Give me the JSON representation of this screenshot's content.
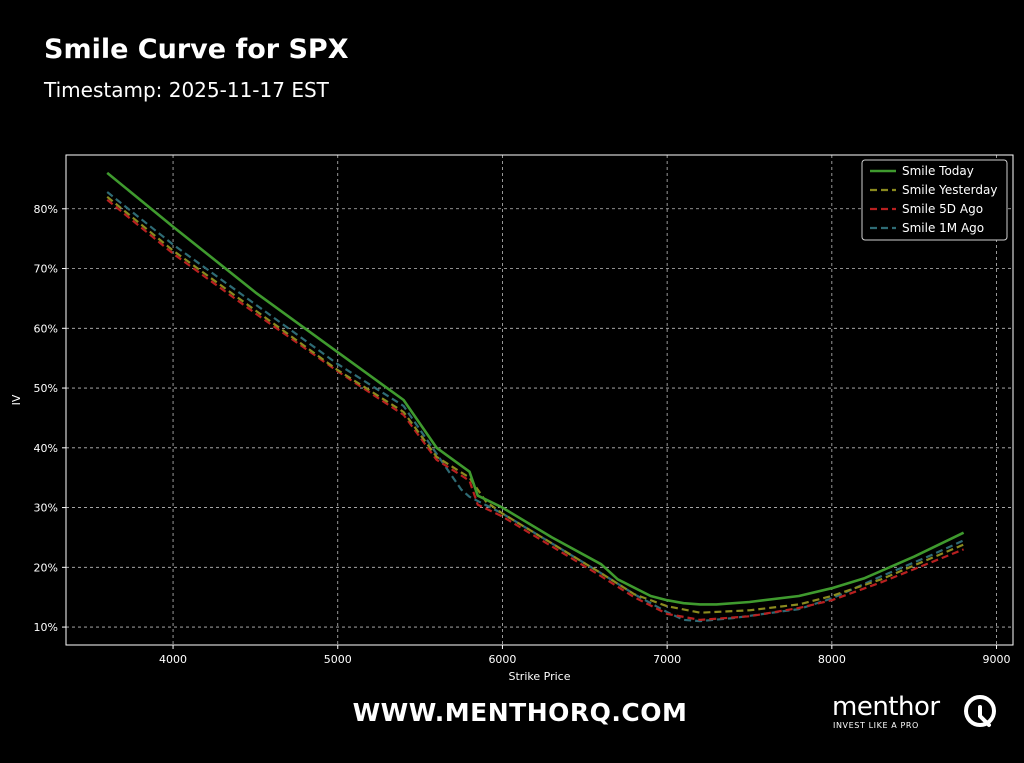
{
  "header": {
    "title": "Smile Curve for SPX",
    "subtitle": "Timestamp: 2025-11-17 EST"
  },
  "footer": {
    "url": "WWW.MENTHORQ.COM",
    "logo_name": "menthor",
    "logo_tagline": "INVEST LIKE A PRO"
  },
  "chart_data": {
    "type": "line",
    "xlabel": "Strike Price",
    "ylabel": "IV",
    "xlim": [
      3350,
      9100
    ],
    "ylim": [
      0.07,
      0.89
    ],
    "xticks": [
      4000,
      5000,
      6000,
      7000,
      8000,
      9000
    ],
    "yticks": [
      0.1,
      0.2,
      0.3,
      0.4,
      0.5,
      0.6,
      0.7,
      0.8
    ],
    "ytick_labels": [
      "10%",
      "20%",
      "30%",
      "40%",
      "50%",
      "60%",
      "70%",
      "80%"
    ],
    "grid": true,
    "legend_position": "top-right",
    "background": "#000000",
    "series": [
      {
        "name": "Smile Today",
        "color": "#3f9a2e",
        "style": "solid",
        "x": [
          3600,
          4000,
          4500,
          5000,
          5400,
          5600,
          5800,
          5850,
          6000,
          6300,
          6600,
          6700,
          6900,
          7000,
          7100,
          7200,
          7300,
          7500,
          7800,
          8000,
          8200,
          8500,
          8800
        ],
        "y": [
          0.86,
          0.77,
          0.66,
          0.56,
          0.48,
          0.4,
          0.36,
          0.32,
          0.3,
          0.25,
          0.205,
          0.18,
          0.152,
          0.145,
          0.14,
          0.138,
          0.138,
          0.142,
          0.152,
          0.165,
          0.182,
          0.218,
          0.258
        ]
      },
      {
        "name": "Smile Yesterday",
        "color": "#8a8a1e",
        "style": "dashed",
        "x": [
          3600,
          4000,
          4500,
          5000,
          5400,
          5600,
          5800,
          5900,
          6000,
          6300,
          6600,
          6800,
          7000,
          7200,
          7500,
          7800,
          8000,
          8300,
          8600,
          8800
        ],
        "y": [
          0.82,
          0.73,
          0.63,
          0.53,
          0.46,
          0.385,
          0.35,
          0.31,
          0.29,
          0.24,
          0.19,
          0.155,
          0.135,
          0.124,
          0.128,
          0.138,
          0.152,
          0.18,
          0.215,
          0.238
        ]
      },
      {
        "name": "Smile 5D Ago",
        "color": "#b82020",
        "style": "dashed",
        "x": [
          3600,
          4000,
          4500,
          5000,
          5400,
          5600,
          5800,
          5850,
          6000,
          6300,
          6600,
          6800,
          7000,
          7200,
          7500,
          7800,
          8000,
          8300,
          8600,
          8800
        ],
        "y": [
          0.815,
          0.725,
          0.625,
          0.528,
          0.455,
          0.38,
          0.345,
          0.305,
          0.285,
          0.235,
          0.185,
          0.15,
          0.122,
          0.112,
          0.118,
          0.132,
          0.145,
          0.175,
          0.208,
          0.23
        ]
      },
      {
        "name": "Smile 1M Ago",
        "color": "#2e6b75",
        "style": "dashed",
        "x": [
          3600,
          4000,
          4500,
          5000,
          5400,
          5600,
          5750,
          5800,
          6000,
          6300,
          6600,
          6800,
          7000,
          7100,
          7200,
          7400,
          7800,
          8000,
          8300,
          8600,
          8800
        ],
        "y": [
          0.828,
          0.74,
          0.64,
          0.54,
          0.47,
          0.39,
          0.33,
          0.318,
          0.29,
          0.24,
          0.19,
          0.155,
          0.125,
          0.112,
          0.11,
          0.115,
          0.13,
          0.148,
          0.185,
          0.22,
          0.245
        ]
      }
    ]
  }
}
